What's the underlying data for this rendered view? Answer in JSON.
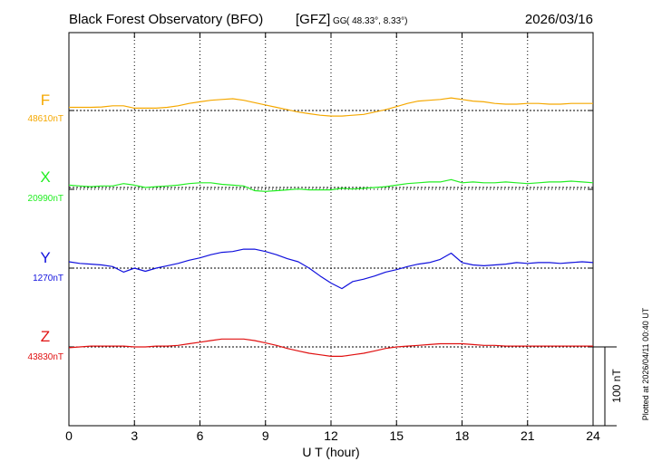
{
  "chart_data": {
    "type": "line",
    "title": "Black Forest Observatory (BFO)",
    "agency": "[GFZ]",
    "coord_system": "GG",
    "location": "( 48.33°,   8.33°)",
    "date": "2026/03/16",
    "xlabel": "U T (hour)",
    "xlim": [
      0,
      24
    ],
    "x_ticks": [
      0,
      3,
      6,
      9,
      12,
      15,
      18,
      21,
      24
    ],
    "scale_bar": "100 nT",
    "scale_bar_nT": 100,
    "plotted_note": "Plotted at 2026/04/11 00:40 UT",
    "grid": true,
    "series": [
      {
        "name": "F",
        "baseline_label": "48610nT",
        "baseline_nT": 48610,
        "color": "#f5a800",
        "x": [
          0,
          0.5,
          1,
          1.5,
          2,
          2.5,
          3,
          3.5,
          4,
          4.5,
          5,
          5.5,
          6,
          6.5,
          7,
          7.5,
          8,
          8.5,
          9,
          9.5,
          10,
          10.5,
          11,
          11.5,
          12,
          12.5,
          13,
          13.5,
          14,
          14.5,
          15,
          15.5,
          16,
          16.5,
          17,
          17.5,
          18,
          18.5,
          19,
          19.5,
          20,
          20.5,
          21,
          21.5,
          22,
          22.5,
          23,
          23.5,
          24
        ],
        "values": [
          48614,
          48614,
          48614,
          48614.5,
          48616,
          48616,
          48613,
          48613,
          48613,
          48614,
          48616,
          48619,
          48621,
          48623,
          48624,
          48625,
          48623,
          48620,
          48617,
          48614,
          48611,
          48608,
          48606,
          48604,
          48603,
          48603,
          48604,
          48605,
          48608,
          48611,
          48615,
          48619,
          48622,
          48623,
          48624,
          48626,
          48624,
          48622,
          48621,
          48619,
          48618,
          48618,
          48619,
          48619,
          48618,
          48618,
          48619,
          48619,
          48619
        ]
      },
      {
        "name": "X",
        "baseline_label": "20990nT",
        "baseline_nT": 20990,
        "color": "#22ee22",
        "x": [
          0,
          0.5,
          1,
          1.5,
          2,
          2.5,
          3,
          3.5,
          4,
          4.5,
          5,
          5.5,
          6,
          6.5,
          7,
          7.5,
          8,
          8.5,
          9,
          9.5,
          10,
          10.5,
          11,
          11.5,
          12,
          12.5,
          13,
          13.5,
          14,
          14.5,
          15,
          15.5,
          16,
          16.5,
          17,
          17.5,
          18,
          18.5,
          19,
          19.5,
          20,
          20.5,
          21,
          21.5,
          22,
          22.5,
          23,
          23.5,
          24
        ],
        "values": [
          20993,
          20992,
          20991,
          20992,
          20992,
          20995,
          20993,
          20990,
          20991,
          20992,
          20993,
          20995,
          20996,
          20996,
          20994,
          20993,
          20992,
          20986,
          20985,
          20986,
          20987,
          20988,
          20987,
          20987,
          20987,
          20989,
          20988,
          20989,
          20990,
          20991,
          20993,
          20995,
          20996,
          20997,
          20997,
          21000,
          20996,
          20997,
          20996,
          20996,
          20997,
          20996,
          20995,
          20996,
          20997,
          20997,
          20998,
          20997,
          20996
        ]
      },
      {
        "name": "Y",
        "baseline_label": "1270nT",
        "baseline_nT": 1270,
        "color": "#1010dd",
        "x": [
          0,
          0.5,
          1,
          1.5,
          2,
          2.5,
          3,
          3.5,
          4,
          4.5,
          5,
          5.5,
          6,
          6.5,
          7,
          7.5,
          8,
          8.5,
          9,
          9.5,
          10,
          10.5,
          11,
          11.5,
          12,
          12.5,
          13,
          13.5,
          14,
          14.5,
          15,
          15.5,
          16,
          16.5,
          17,
          17.5,
          18,
          18.5,
          19,
          19.5,
          20,
          20.5,
          21,
          21.5,
          22,
          22.5,
          23,
          23.5,
          24
        ],
        "values": [
          1278,
          1276,
          1275,
          1274,
          1272,
          1265,
          1270,
          1266,
          1270,
          1273,
          1276,
          1280,
          1283,
          1287,
          1290,
          1291,
          1294,
          1294,
          1291,
          1287,
          1282,
          1278,
          1270,
          1260,
          1251,
          1244,
          1253,
          1256,
          1260,
          1265,
          1268,
          1272,
          1275,
          1277,
          1281,
          1289,
          1277,
          1274,
          1273,
          1274,
          1275,
          1277,
          1276,
          1277,
          1277,
          1276,
          1277,
          1278,
          1277
        ]
      },
      {
        "name": "Z",
        "baseline_label": "43830nT",
        "baseline_nT": 43830,
        "color": "#e01010",
        "x": [
          0,
          0.5,
          1,
          1.5,
          2,
          2.5,
          3,
          3.5,
          4,
          4.5,
          5,
          5.5,
          6,
          6.5,
          7,
          7.5,
          8,
          8.5,
          9,
          9.5,
          10,
          10.5,
          11,
          11.5,
          12,
          12.5,
          13,
          13.5,
          14,
          14.5,
          15,
          15.5,
          16,
          16.5,
          17,
          17.5,
          18,
          18.5,
          19,
          19.5,
          20,
          20.5,
          21,
          21.5,
          22,
          22.5,
          23,
          23.5,
          24
        ],
        "values": [
          43829,
          43830,
          43831,
          43831,
          43831,
          43831,
          43830,
          43830,
          43831,
          43831,
          43832,
          43834,
          43836,
          43838,
          43840,
          43840,
          43840,
          43838,
          43835,
          43832,
          43828,
          43825,
          43822,
          43820,
          43818,
          43818,
          43820,
          43822,
          43825,
          43828,
          43830,
          43831,
          43832,
          43833,
          43834,
          43834,
          43834,
          43833,
          43832,
          43832,
          43831,
          43831,
          43831,
          43831,
          43831,
          43831,
          43831,
          43831,
          43831
        ]
      }
    ]
  }
}
